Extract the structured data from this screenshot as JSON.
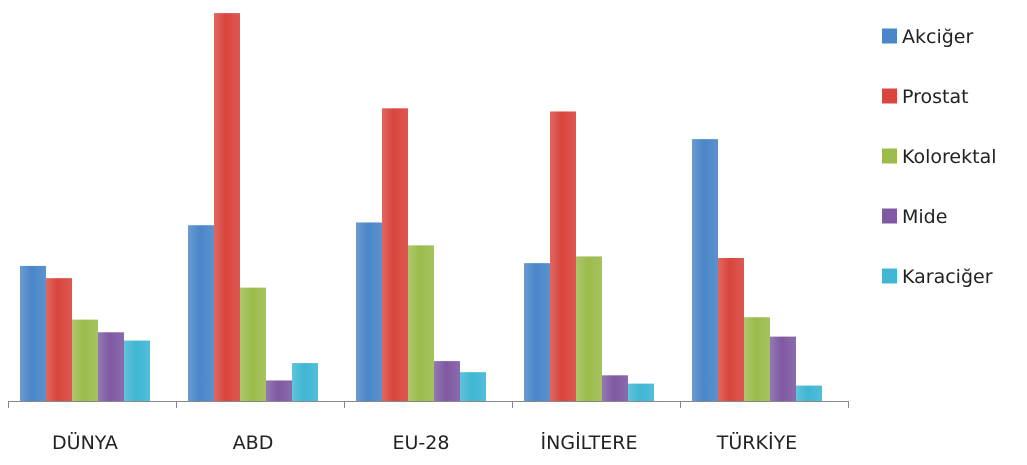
{
  "chart_data": {
    "type": "bar",
    "title": "",
    "xlabel": "",
    "ylabel": "",
    "categories": [
      "DÜNYA",
      "ABD",
      "EU-28",
      "İNGİLTERE",
      "TÜRKİYE"
    ],
    "series": [
      {
        "name": "Akciğer",
        "color": "#4a86c8",
        "values": [
          34.2,
          44.5,
          45.2,
          34.9,
          66.3
        ]
      },
      {
        "name": "Prostat",
        "color": "#d9463e",
        "values": [
          31.1,
          98.2,
          74.1,
          73.3,
          36.2
        ]
      },
      {
        "name": "Kolorektal",
        "color": "#9bbb4c",
        "values": [
          20.6,
          28.7,
          39.4,
          36.6,
          21.2
        ]
      },
      {
        "name": "Mide",
        "color": "#7f5aa3",
        "values": [
          17.4,
          5.2,
          10.1,
          6.5,
          16.3
        ]
      },
      {
        "name": "Karaciğer",
        "color": "#3fb6d4",
        "values": [
          15.3,
          9.6,
          7.3,
          4.4,
          3.9
        ]
      }
    ],
    "ylim": [
      0,
      100
    ],
    "grid": false,
    "legend": "right"
  }
}
